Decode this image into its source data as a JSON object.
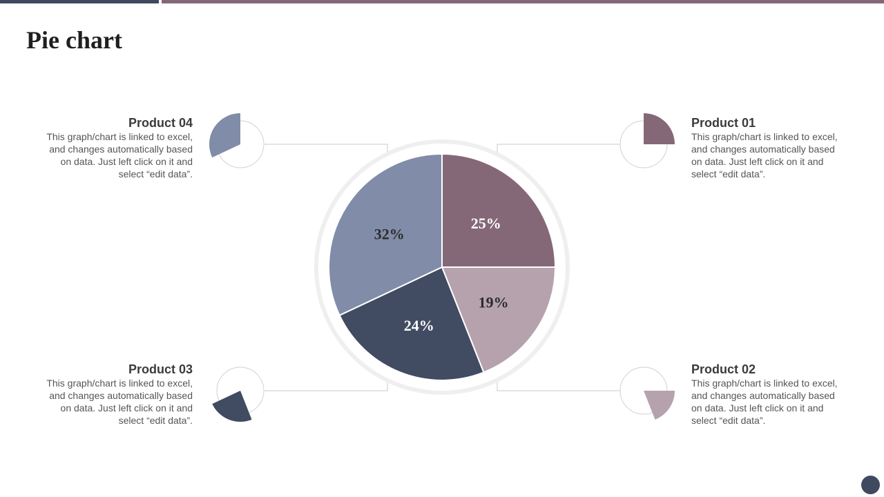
{
  "title": "Pie chart",
  "colors": {
    "product01": "#856877",
    "product02": "#b6a2ad",
    "product03": "#414b62",
    "product04": "#808ca8",
    "accent_dark": "#3f4a60"
  },
  "chart_data": {
    "type": "pie",
    "categories": [
      "Product 01",
      "Product 02",
      "Product 03",
      "Product 04"
    ],
    "values": [
      25,
      19,
      24,
      32
    ],
    "labels": [
      "25%",
      "19%",
      "24%",
      "32%"
    ],
    "legend": "none"
  },
  "products": [
    {
      "name": "Product 01",
      "description": "This graph/chart is linked to excel, and changes automatically based on data. Just left click on it and select “edit data”."
    },
    {
      "name": "Product 02",
      "description": "This graph/chart is linked to excel, and changes automatically based on data. Just left click on it and select “edit data”."
    },
    {
      "name": "Product 03",
      "description": "This graph/chart is linked to excel, and changes automatically based on data. Just left click on it and select “edit data”."
    },
    {
      "name": "Product 04",
      "description": "This graph/chart is linked to excel, and changes automatically based on data. Just left click on it and select “edit data”."
    }
  ]
}
